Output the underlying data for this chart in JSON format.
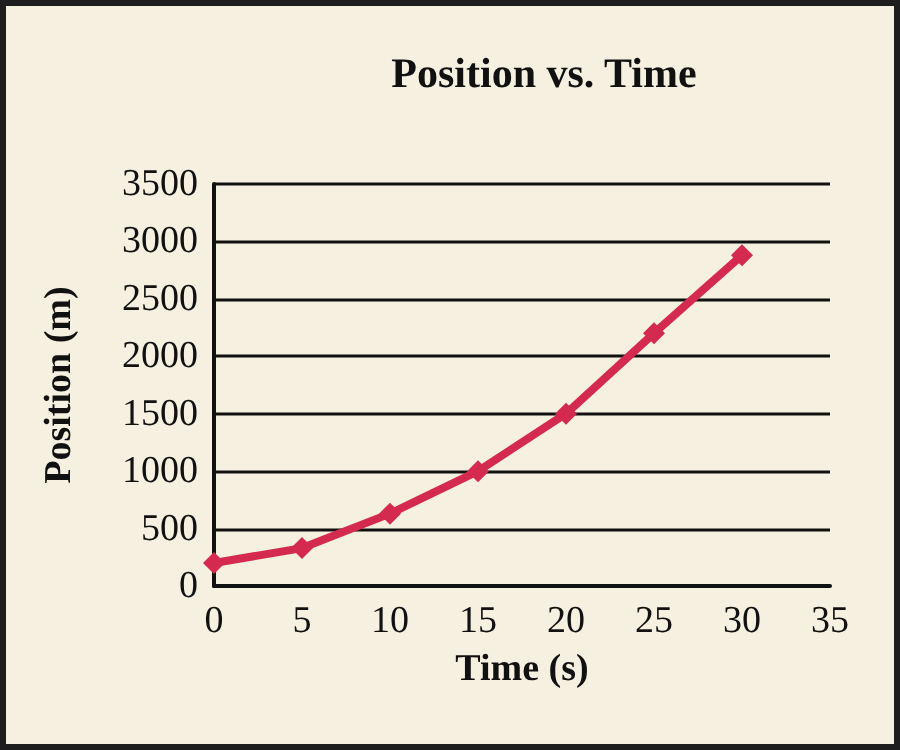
{
  "chart_data": {
    "type": "line",
    "title": "Position vs. Time",
    "xlabel": "Time (s)",
    "ylabel": "Position (m)",
    "x": [
      0,
      5,
      10,
      15,
      20,
      25,
      30
    ],
    "series": [
      {
        "color": "#d42a4f",
        "values": [
          200,
          330,
          630,
          1000,
          1500,
          2200,
          2880
        ]
      }
    ],
    "xlim": [
      0,
      35
    ],
    "xticks": [
      0,
      5,
      10,
      15,
      20,
      25,
      30,
      35
    ],
    "ylim": [
      0,
      3500
    ],
    "yticks": [
      0,
      500,
      1000,
      1500,
      2000,
      2500,
      3000,
      3500
    ],
    "grid": "y",
    "marker": "diamond",
    "line_style": "solid"
  }
}
